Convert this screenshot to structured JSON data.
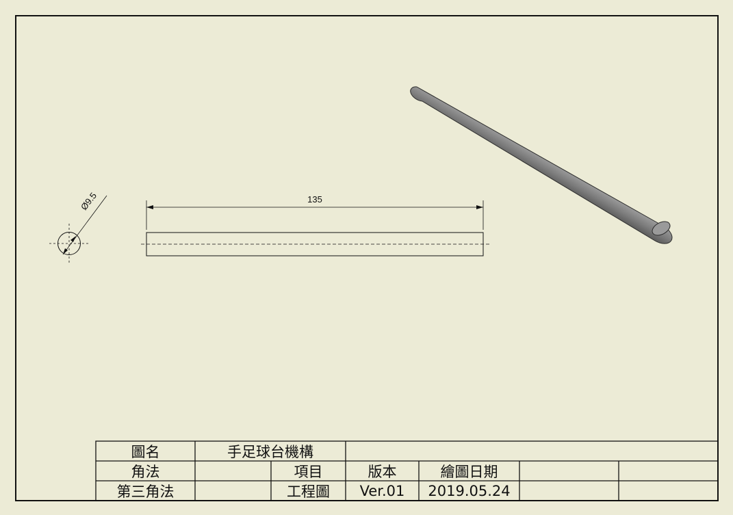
{
  "drawing": {
    "dimensions": {
      "diameter_label": "Ø9.5",
      "length_label": "135"
    },
    "iso_view": {
      "name": "rod-3d-view"
    }
  },
  "title_block": {
    "row1": {
      "drawing_name_label": "圖名",
      "drawing_name_value": "手足球台機構"
    },
    "row2": {
      "projection_label": "角法",
      "item_label": "項目",
      "version_label": "版本",
      "draw_date_label": "繪圖日期"
    },
    "row3": {
      "projection_value": "第三角法",
      "item_value": "工程圖",
      "version_value": "Ver.01",
      "draw_date_value": "2019.05.24"
    }
  },
  "colors": {
    "background": "#ecebd6",
    "line": "#111111",
    "rod_dark": "#5a5a5a",
    "rod_light": "#9c9c9c"
  }
}
